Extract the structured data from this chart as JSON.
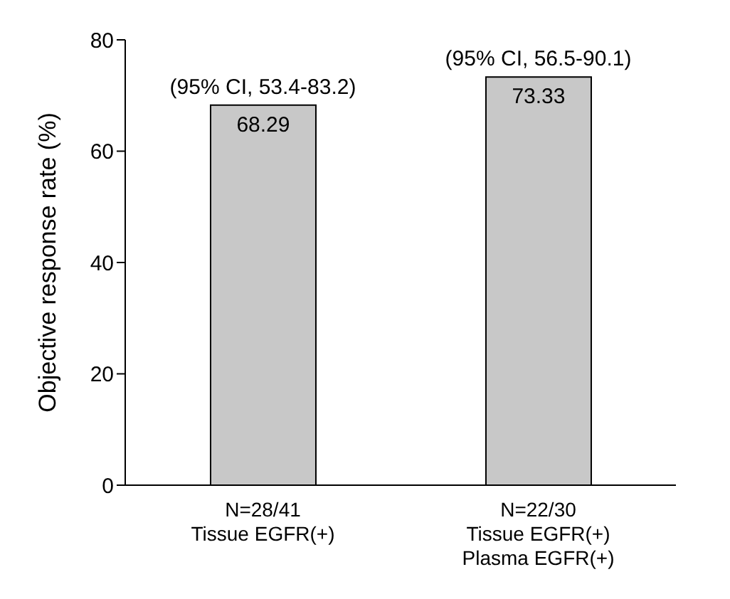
{
  "chart_data": {
    "type": "bar",
    "ylabel": "Objective response rate (%)",
    "categories": [
      "N=28/41\nTissue EGFR(+)",
      "N=22/30\nTissue EGFR(+)\nPlasma EGFR(+)"
    ],
    "values": [
      68.29,
      73.33
    ],
    "color": "#c8c8c8",
    "data_labels": true,
    "ylim": [
      0,
      80
    ],
    "yticks": [
      0,
      20,
      40,
      60,
      80
    ],
    "grid": false,
    "legend": false,
    "annotations": [
      {
        "text": "(95% CI, 53.4-83.2)",
        "x": "N=28/41\nTissue EGFR(+)",
        "y": 68.29
      },
      {
        "text": "(95% CI, 56.5-90.1)",
        "x": "N=22/30\nTissue EGFR(+)\nPlasma EGFR(+)",
        "y": 73.33
      }
    ]
  }
}
